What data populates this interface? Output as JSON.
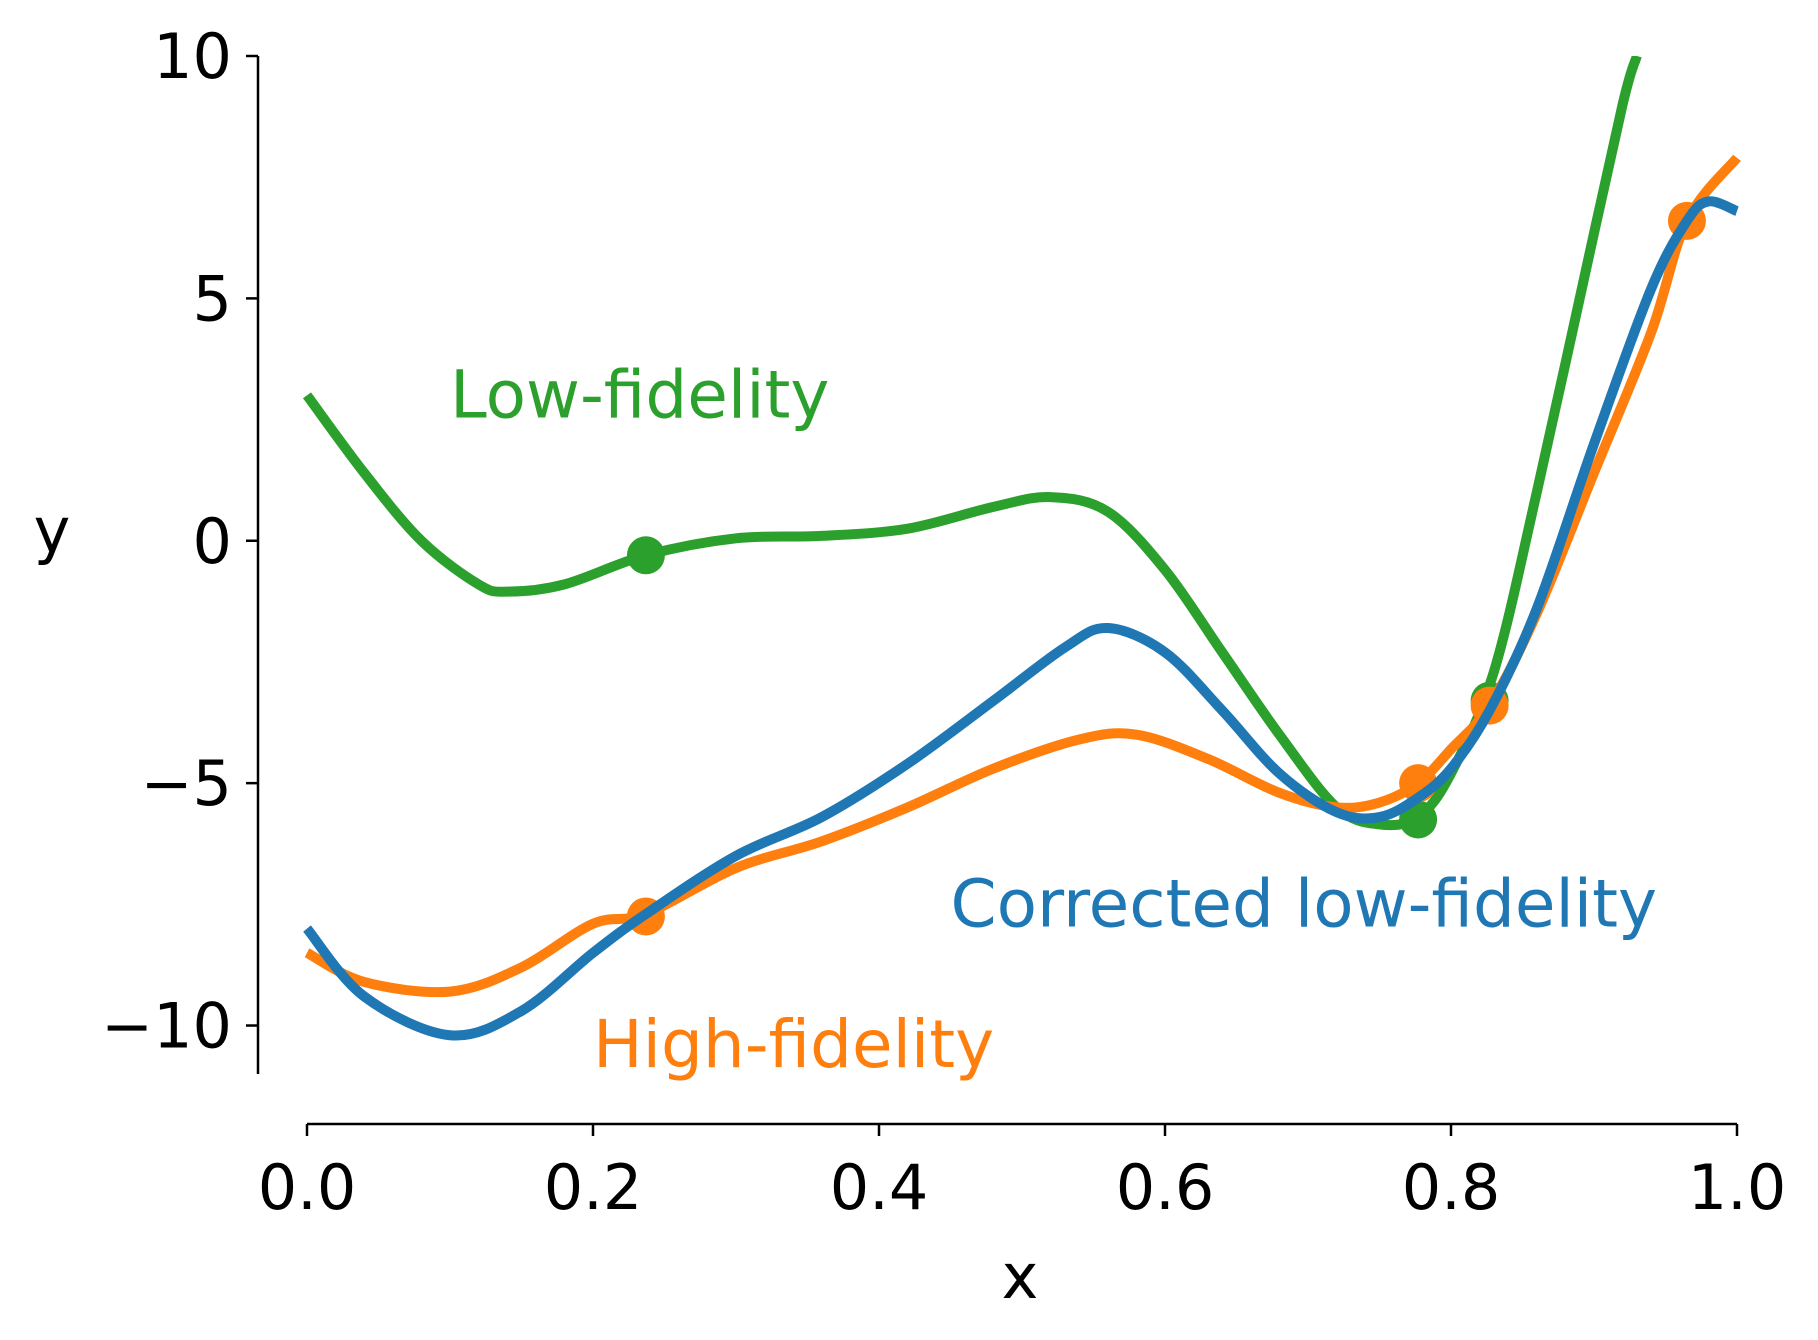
{
  "chart_data": {
    "type": "line",
    "xlabel": "x",
    "ylabel": "y",
    "xlim": [
      0.0,
      1.0
    ],
    "ylim": [
      -11,
      10
    ],
    "xticks": [
      {
        "value": 0.0,
        "label": "0.0"
      },
      {
        "value": 0.2,
        "label": "0.2"
      },
      {
        "value": 0.4,
        "label": "0.4"
      },
      {
        "value": 0.6,
        "label": "0.6"
      },
      {
        "value": 0.8,
        "label": "0.8"
      },
      {
        "value": 1.0,
        "label": "1.0"
      }
    ],
    "yticks": [
      {
        "value": 10,
        "label": "10"
      },
      {
        "value": 5,
        "label": "5"
      },
      {
        "value": 0,
        "label": "0"
      },
      {
        "value": -5,
        "label": "−5"
      },
      {
        "value": -10,
        "label": "−10"
      }
    ],
    "grid": false,
    "series": [
      {
        "name": "Low-fidelity",
        "color": "#2ca02c",
        "x": [
          0.0,
          0.04,
          0.08,
          0.12,
          0.14,
          0.18,
          0.237,
          0.3,
          0.36,
          0.42,
          0.48,
          0.52,
          0.56,
          0.6,
          0.64,
          0.68,
          0.72,
          0.75,
          0.777,
          0.8,
          0.83,
          0.86,
          0.89,
          0.92,
          0.93
        ],
        "y": [
          3.0,
          1.4,
          0.0,
          -0.9,
          -1.05,
          -0.9,
          -0.3,
          0.05,
          0.1,
          0.25,
          0.7,
          0.9,
          0.6,
          -0.6,
          -2.3,
          -4.0,
          -5.5,
          -5.85,
          -5.7,
          -4.8,
          -2.7,
          1.0,
          5.0,
          9.0,
          10.0
        ]
      },
      {
        "name": "High-fidelity",
        "color": "#ff7f0e",
        "x": [
          0.0,
          0.04,
          0.1,
          0.15,
          0.2,
          0.237,
          0.3,
          0.36,
          0.42,
          0.48,
          0.54,
          0.58,
          0.63,
          0.68,
          0.72,
          0.75,
          0.777,
          0.8,
          0.827,
          0.86,
          0.9,
          0.94,
          0.965,
          1.0
        ],
        "y": [
          -8.5,
          -9.1,
          -9.3,
          -8.8,
          -7.9,
          -7.7,
          -6.75,
          -6.2,
          -5.5,
          -4.7,
          -4.1,
          -4.0,
          -4.5,
          -5.2,
          -5.5,
          -5.4,
          -5.0,
          -4.3,
          -3.4,
          -1.5,
          1.4,
          4.3,
          6.6,
          7.9
        ]
      },
      {
        "name": "Corrected low-fidelity",
        "color": "#1f77b4",
        "x": [
          0.0,
          0.04,
          0.1,
          0.15,
          0.2,
          0.237,
          0.3,
          0.36,
          0.42,
          0.48,
          0.53,
          0.56,
          0.6,
          0.64,
          0.68,
          0.72,
          0.75,
          0.777,
          0.8,
          0.827,
          0.86,
          0.9,
          0.94,
          0.965,
          0.98,
          1.0
        ],
        "y": [
          -8.0,
          -9.4,
          -10.2,
          -9.7,
          -8.5,
          -7.7,
          -6.5,
          -5.7,
          -4.6,
          -3.3,
          -2.2,
          -1.8,
          -2.3,
          -3.5,
          -4.8,
          -5.6,
          -5.7,
          -5.3,
          -4.7,
          -3.5,
          -1.4,
          2.0,
          5.2,
          6.6,
          7.0,
          6.8
        ]
      }
    ],
    "points": [
      {
        "series": "Low-fidelity",
        "color": "#2ca02c",
        "x": 0.237,
        "y": -0.3
      },
      {
        "series": "Low-fidelity",
        "color": "#2ca02c",
        "x": 0.777,
        "y": -5.75
      },
      {
        "series": "Low-fidelity",
        "color": "#2ca02c",
        "x": 0.827,
        "y": -3.3
      },
      {
        "series": "High-fidelity",
        "color": "#ff7f0e",
        "x": 0.237,
        "y": -7.75
      },
      {
        "series": "High-fidelity",
        "color": "#ff7f0e",
        "x": 0.777,
        "y": -5.0
      },
      {
        "series": "High-fidelity",
        "color": "#ff7f0e",
        "x": 0.827,
        "y": -3.4
      },
      {
        "series": "High-fidelity",
        "color": "#ff7f0e",
        "x": 0.965,
        "y": 6.6
      }
    ],
    "annotations": [
      {
        "text": "Low-fidelity",
        "color": "#2ca02c",
        "x": 0.1,
        "y": 3.0
      },
      {
        "text": "Corrected low-fidelity",
        "color": "#1f77b4",
        "x": 0.45,
        "y": -7.5
      },
      {
        "text": "High-fidelity",
        "color": "#ff7f0e",
        "x": 0.2,
        "y": -10.4
      }
    ]
  }
}
